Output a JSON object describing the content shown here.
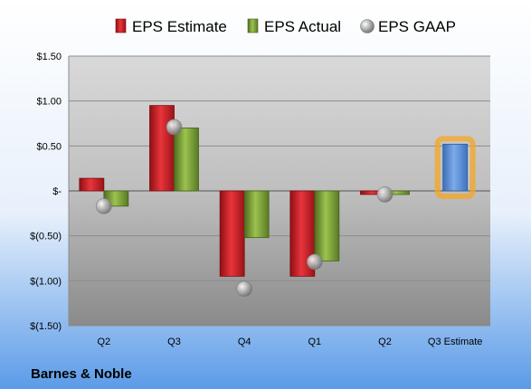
{
  "chart_data": {
    "type": "bar",
    "categories": [
      "Q2",
      "Q3",
      "Q4",
      "Q1",
      "Q2",
      "Q3 Estimate"
    ],
    "series": [
      {
        "name": "EPS Estimate",
        "values": [
          0.14,
          0.95,
          -0.95,
          -0.95,
          -0.04,
          null
        ]
      },
      {
        "name": "EPS Actual",
        "values": [
          -0.17,
          0.7,
          -0.52,
          -0.78,
          -0.04,
          null
        ]
      },
      {
        "name": "EPS GAAP",
        "values": [
          -0.17,
          0.71,
          -1.09,
          -0.79,
          -0.04,
          null
        ]
      }
    ],
    "highlight": {
      "category_index": 5,
      "value": 0.52
    },
    "ylim": [
      -1.5,
      1.5
    ],
    "yticks": [
      1.5,
      1.0,
      0.5,
      0,
      -0.5,
      -1.0,
      -1.5
    ],
    "ytick_labels": [
      "$1.50",
      "$1.00",
      "$0.50",
      "$-",
      "$(0.50)",
      "$(1.00)",
      "$(1.50)"
    ],
    "legend_position": "top",
    "grid": true,
    "colors": {
      "estimate": "#d2232a",
      "actual": "#7da13a",
      "gaap": "#a6a6a6",
      "highlight": "#5b8fd6",
      "highlight_glow": "#f5a623",
      "background_top": "#ffffff",
      "background_bottom": "#5b9be8"
    }
  },
  "footer": {
    "company": "Barnes & Noble"
  }
}
